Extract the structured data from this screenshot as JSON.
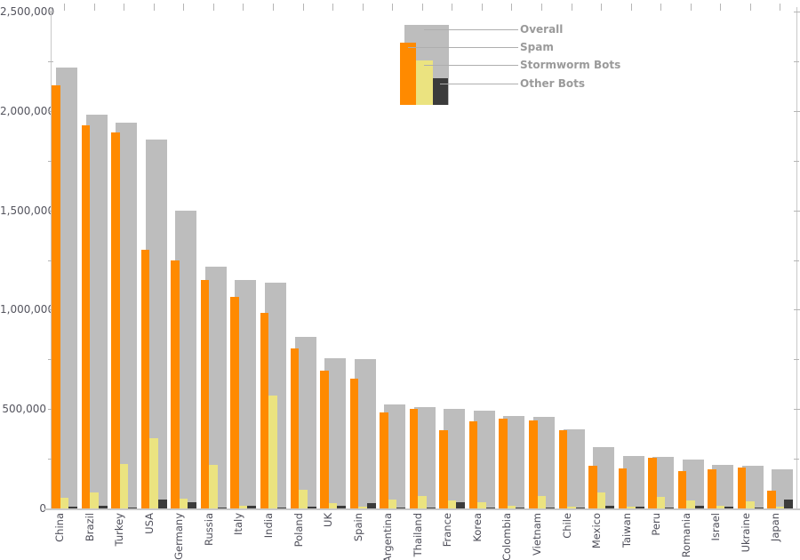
{
  "legend": {
    "items": [
      {
        "label": "Overall",
        "color": "#bdbdbd"
      },
      {
        "label": "Spam",
        "color": "#ff8a00"
      },
      {
        "label": "Stormworm Bots",
        "color": "#ebe380"
      },
      {
        "label": "Other Bots",
        "color": "#3b3b3b"
      }
    ]
  },
  "axis": {
    "y_tick_labels": [
      "2,500,000",
      "2,000,000",
      "1,500,000",
      "1,000,000",
      "500,000",
      "0"
    ]
  },
  "chart_data": {
    "type": "bar",
    "title": "",
    "xlabel": "",
    "ylabel": "",
    "ylim": [
      0,
      2500000
    ],
    "y_tick_interval": 500000,
    "y_minor_tick_interval": 250000,
    "grid": false,
    "legend_position": "top-center",
    "categories": [
      "China",
      "Brazil",
      "Turkey",
      "USA",
      "Germany",
      "Russia",
      "Italy",
      "India",
      "Poland",
      "UK",
      "Spain",
      "Argentina",
      "Thailand",
      "France",
      "Korea",
      "Colombia",
      "Vietnam",
      "Chile",
      "Mexico",
      "Taiwan",
      "Peru",
      "Romania",
      "Israel",
      "Ukraine",
      "Japan"
    ],
    "series": [
      {
        "name": "Overall",
        "color": "#bdbdbd",
        "values": [
          2220000,
          1980000,
          1940000,
          1855000,
          1500000,
          1215000,
          1150000,
          1135000,
          865000,
          755000,
          750000,
          525000,
          510000,
          500000,
          490000,
          465000,
          460000,
          400000,
          310000,
          265000,
          260000,
          245000,
          220000,
          215000,
          195000
        ]
      },
      {
        "name": "Spam",
        "color": "#ff8a00",
        "values": [
          2130000,
          1930000,
          1890000,
          1300000,
          1250000,
          1150000,
          1065000,
          985000,
          805000,
          695000,
          655000,
          485000,
          500000,
          395000,
          440000,
          450000,
          445000,
          395000,
          215000,
          200000,
          255000,
          190000,
          195000,
          205000,
          90000
        ]
      },
      {
        "name": "Stormworm Bots",
        "color": "#ebe380",
        "values": [
          55000,
          80000,
          225000,
          355000,
          50000,
          220000,
          15000,
          570000,
          95000,
          25000,
          10000,
          45000,
          65000,
          40000,
          30000,
          15000,
          65000,
          10000,
          80000,
          10000,
          60000,
          40000,
          15000,
          35000,
          10000
        ]
      },
      {
        "name": "Other Bots",
        "color": "#3b3b3b",
        "values": [
          10000,
          15000,
          5000,
          45000,
          30000,
          5000,
          15000,
          5000,
          10000,
          15000,
          25000,
          5000,
          5000,
          30000,
          5000,
          5000,
          5000,
          5000,
          15000,
          10000,
          5000,
          15000,
          10000,
          5000,
          45000
        ]
      }
    ]
  }
}
